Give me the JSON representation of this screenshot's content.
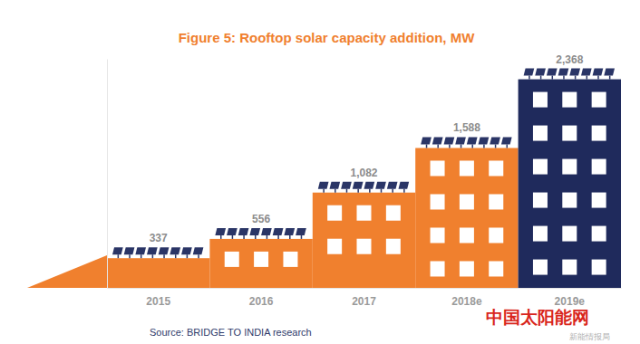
{
  "chart_data": {
    "type": "bar",
    "title": "Figure 5: Rooftop solar capacity addition, MW",
    "categories": [
      "2015",
      "2016",
      "2017",
      "2018e",
      "2019e"
    ],
    "values": [
      337,
      556,
      1082,
      1588,
      2368
    ],
    "value_labels": [
      "337",
      "556",
      "1,082",
      "1,588",
      "2,368"
    ],
    "colors": [
      "#f0802e",
      "#f0802e",
      "#f0802e",
      "#f0802e",
      "#1f2a5c"
    ],
    "ylim": [
      0,
      2600
    ],
    "yticks": [],
    "data_labels": true,
    "tick_labels": "x",
    "annotations": [
      "Source: BRIDGE TO INDIA research",
      "中国太阳能网",
      "新能情报局"
    ]
  }
}
